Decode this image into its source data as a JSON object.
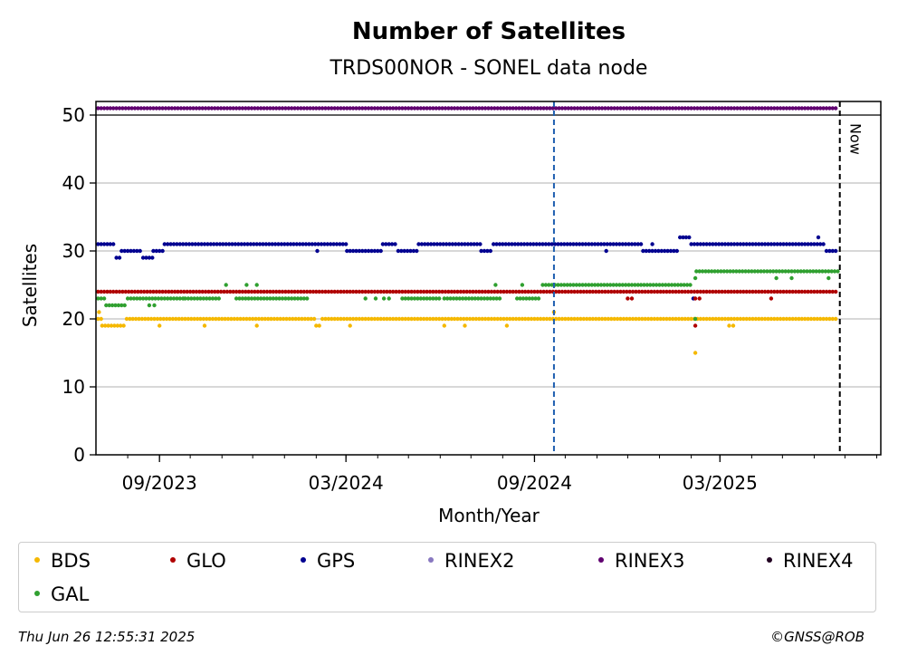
{
  "chart_data": {
    "type": "scatter",
    "title": "Number of Satellites",
    "subtitle": "TRDS00NOR - SONEL data node",
    "xlabel": "Month/Year",
    "ylabel": "Satellites",
    "ylim": [
      0,
      52
    ],
    "xlim": [
      "2023-07-01",
      "2025-08-05"
    ],
    "y_ticks": [
      0,
      10,
      20,
      30,
      40,
      50
    ],
    "x_ticks": [
      {
        "date": "2023-09-01",
        "label": "09/2023"
      },
      {
        "date": "2024-03-01",
        "label": "03/2024"
      },
      {
        "date": "2024-09-01",
        "label": "09/2024"
      },
      {
        "date": "2025-03-01",
        "label": "03/2025"
      }
    ],
    "grid": "horizontal",
    "data_start": "2023-07-03",
    "data_end": "2025-06-24",
    "vlines": [
      {
        "date": "2024-09-20",
        "color": "#1f5fb0",
        "style": "dashed"
      },
      {
        "date": "2025-06-26",
        "color": "#000000",
        "style": "dashed",
        "label": "Now"
      }
    ],
    "hline": 50,
    "series": [
      {
        "name": "BDS",
        "color": "#f5b800",
        "segments": [
          {
            "from": "2023-07-03",
            "to": "2023-07-06",
            "value": 20
          },
          {
            "from": "2023-07-07",
            "to": "2023-07-30",
            "value": 19
          },
          {
            "from": "2023-07-31",
            "to": "2024-01-31",
            "value": 20
          },
          {
            "from": "2024-02-01",
            "to": "2024-02-06",
            "value": 19
          },
          {
            "from": "2024-02-07",
            "to": "2025-06-24",
            "value": 20
          }
        ],
        "outliers": [
          {
            "date": "2023-07-04",
            "value": 21
          },
          {
            "date": "2023-09-01",
            "value": 19
          },
          {
            "date": "2023-10-15",
            "value": 19
          },
          {
            "date": "2023-12-05",
            "value": 19
          },
          {
            "date": "2024-03-05",
            "value": 19
          },
          {
            "date": "2024-06-05",
            "value": 19
          },
          {
            "date": "2024-06-25",
            "value": 19
          },
          {
            "date": "2024-08-05",
            "value": 19
          },
          {
            "date": "2024-09-20",
            "value": 21
          },
          {
            "date": "2025-02-05",
            "value": 15
          },
          {
            "date": "2025-03-10",
            "value": 19
          },
          {
            "date": "2025-03-14",
            "value": 19
          }
        ]
      },
      {
        "name": "GLO",
        "color": "#b00000",
        "segments": [
          {
            "from": "2023-07-03",
            "to": "2025-06-24",
            "value": 24
          }
        ],
        "outliers": [
          {
            "date": "2024-12-01",
            "value": 23
          },
          {
            "date": "2024-12-05",
            "value": 23
          },
          {
            "date": "2025-02-05",
            "value": 19
          },
          {
            "date": "2025-02-05",
            "value": 23
          },
          {
            "date": "2025-02-09",
            "value": 23
          },
          {
            "date": "2025-04-20",
            "value": 23
          }
        ]
      },
      {
        "name": "GPS",
        "color": "#000090",
        "segments": [
          {
            "from": "2023-07-03",
            "to": "2023-07-20",
            "value": 31
          },
          {
            "from": "2023-07-21",
            "to": "2023-07-25",
            "value": 29
          },
          {
            "from": "2023-07-26",
            "to": "2023-08-15",
            "value": 30
          },
          {
            "from": "2023-08-16",
            "to": "2023-08-25",
            "value": 29
          },
          {
            "from": "2023-08-26",
            "to": "2023-09-05",
            "value": 30
          },
          {
            "from": "2023-09-06",
            "to": "2024-03-01",
            "value": 31
          },
          {
            "from": "2024-03-02",
            "to": "2024-04-05",
            "value": 30
          },
          {
            "from": "2024-04-06",
            "to": "2024-04-20",
            "value": 31
          },
          {
            "from": "2024-04-21",
            "to": "2024-05-10",
            "value": 30
          },
          {
            "from": "2024-05-11",
            "to": "2024-07-10",
            "value": 31
          },
          {
            "from": "2024-07-11",
            "to": "2024-07-22",
            "value": 30
          },
          {
            "from": "2024-07-23",
            "to": "2024-12-15",
            "value": 31
          },
          {
            "from": "2024-12-16",
            "to": "2025-01-20",
            "value": 30
          },
          {
            "from": "2025-01-21",
            "to": "2025-01-31",
            "value": 32
          },
          {
            "from": "2025-02-01",
            "to": "2025-06-12",
            "value": 31
          },
          {
            "from": "2025-06-13",
            "to": "2025-06-24",
            "value": 30
          }
        ],
        "outliers": [
          {
            "date": "2024-02-02",
            "value": 30
          },
          {
            "date": "2024-11-10",
            "value": 30
          },
          {
            "date": "2024-12-25",
            "value": 31
          },
          {
            "date": "2025-02-03",
            "value": 23
          },
          {
            "date": "2025-06-05",
            "value": 32
          }
        ]
      },
      {
        "name": "RINEX2",
        "color": "#8878c0",
        "segments": [],
        "outliers": []
      },
      {
        "name": "RINEX3",
        "color": "#600070",
        "segments": [
          {
            "from": "2023-07-03",
            "to": "2025-06-24",
            "value": 51
          }
        ],
        "outliers": []
      },
      {
        "name": "RINEX4",
        "color": "#200020",
        "segments": [],
        "outliers": []
      },
      {
        "name": "GAL",
        "color": "#30a030",
        "segments": [
          {
            "from": "2023-07-03",
            "to": "2023-07-10",
            "value": 23
          },
          {
            "from": "2023-07-11",
            "to": "2023-07-31",
            "value": 22
          },
          {
            "from": "2023-08-01",
            "to": "2023-09-25",
            "value": 23
          },
          {
            "from": "2023-09-26",
            "to": "2023-10-31",
            "value": 23
          },
          {
            "from": "2023-11-15",
            "to": "2024-01-25",
            "value": 23
          },
          {
            "from": "2024-04-25",
            "to": "2024-05-31",
            "value": 23
          },
          {
            "from": "2024-06-05",
            "to": "2024-07-31",
            "value": 23
          },
          {
            "from": "2024-08-15",
            "to": "2024-09-06",
            "value": 23
          },
          {
            "from": "2024-09-09",
            "to": "2025-01-31",
            "value": 25
          },
          {
            "from": "2025-02-06",
            "to": "2025-06-24",
            "value": 27
          }
        ],
        "outliers": [
          {
            "date": "2023-08-22",
            "value": 22
          },
          {
            "date": "2023-08-27",
            "value": 22
          },
          {
            "date": "2023-11-05",
            "value": 25
          },
          {
            "date": "2023-11-25",
            "value": 25
          },
          {
            "date": "2023-12-05",
            "value": 25
          },
          {
            "date": "2024-03-20",
            "value": 23
          },
          {
            "date": "2024-03-30",
            "value": 23
          },
          {
            "date": "2024-04-07",
            "value": 23
          },
          {
            "date": "2024-04-12",
            "value": 23
          },
          {
            "date": "2024-07-25",
            "value": 25
          },
          {
            "date": "2024-08-20",
            "value": 25
          },
          {
            "date": "2025-02-05",
            "value": 20
          },
          {
            "date": "2025-02-05",
            "value": 26
          },
          {
            "date": "2025-04-25",
            "value": 26
          },
          {
            "date": "2025-05-10",
            "value": 26
          },
          {
            "date": "2025-06-15",
            "value": 26
          }
        ]
      }
    ]
  },
  "legend": {
    "items": [
      {
        "label": "BDS",
        "color": "#f5b800"
      },
      {
        "label": "GLO",
        "color": "#b00000"
      },
      {
        "label": "GPS",
        "color": "#000090"
      },
      {
        "label": "RINEX2",
        "color": "#8878c0"
      },
      {
        "label": "RINEX3",
        "color": "#600070"
      },
      {
        "label": "RINEX4",
        "color": "#200020"
      },
      {
        "label": "GAL",
        "color": "#30a030"
      }
    ]
  },
  "footer": {
    "timestamp": "Thu Jun 26 12:55:31 2025",
    "credit": "©GNSS@ROB"
  }
}
